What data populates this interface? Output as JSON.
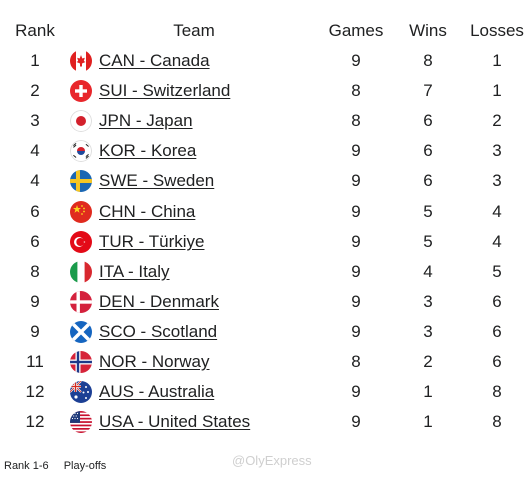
{
  "table": {
    "headers": {
      "rank": "Rank",
      "team": "Team",
      "games": "Games",
      "wins": "Wins",
      "losses": "Losses"
    },
    "rows": [
      {
        "rank": "1",
        "team": "CAN - Canada",
        "flag": "canada-flag-icon",
        "games": "9",
        "wins": "8",
        "losses": "1"
      },
      {
        "rank": "2",
        "team": "SUI - Switzerland",
        "flag": "switzerland-flag-icon",
        "games": "8",
        "wins": "7",
        "losses": "1"
      },
      {
        "rank": "3",
        "team": "JPN - Japan",
        "flag": "japan-flag-icon",
        "games": "8",
        "wins": "6",
        "losses": "2"
      },
      {
        "rank": "4",
        "team": "KOR - Korea",
        "flag": "korea-flag-icon",
        "games": "9",
        "wins": "6",
        "losses": "3"
      },
      {
        "rank": "4",
        "team": "SWE - Sweden",
        "flag": "sweden-flag-icon",
        "games": "9",
        "wins": "6",
        "losses": "3"
      },
      {
        "rank": "6",
        "team": "CHN - China",
        "flag": "china-flag-icon",
        "games": "9",
        "wins": "5",
        "losses": "4"
      },
      {
        "rank": "6",
        "team": "TUR - Türkiye",
        "flag": "turkiye-flag-icon",
        "games": "9",
        "wins": "5",
        "losses": "4"
      },
      {
        "rank": "8",
        "team": "ITA - Italy",
        "flag": "italy-flag-icon",
        "games": "9",
        "wins": "4",
        "losses": "5"
      },
      {
        "rank": "9",
        "team": "DEN - Denmark",
        "flag": "denmark-flag-icon",
        "games": "9",
        "wins": "3",
        "losses": "6"
      },
      {
        "rank": "9",
        "team": "SCO - Scotland",
        "flag": "scotland-flag-icon",
        "games": "9",
        "wins": "3",
        "losses": "6"
      },
      {
        "rank": "11",
        "team": "NOR - Norway",
        "flag": "norway-flag-icon",
        "games": "8",
        "wins": "2",
        "losses": "6"
      },
      {
        "rank": "12",
        "team": "AUS - Australia",
        "flag": "australia-flag-icon",
        "games": "9",
        "wins": "1",
        "losses": "8"
      },
      {
        "rank": "12",
        "team": "USA - United States",
        "flag": "united-states-flag-icon",
        "games": "9",
        "wins": "1",
        "losses": "8"
      }
    ]
  },
  "legend": {
    "rank_label": "Rank 1-6",
    "playoffs_label": "Play-offs"
  },
  "watermark": "@OlyExpress"
}
